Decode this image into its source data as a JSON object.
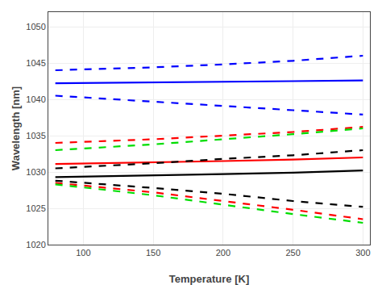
{
  "chart_data": {
    "type": "line",
    "xlabel": "Temperature [K]",
    "ylabel": "Wavelength [nm]",
    "xlim": [
      75,
      305
    ],
    "ylim": [
      1020,
      1052
    ],
    "xticks": [
      100,
      150,
      200,
      250,
      300
    ],
    "yticks": [
      1020,
      1025,
      1030,
      1035,
      1040,
      1045,
      1050
    ],
    "grid": true,
    "x": [
      80,
      150,
      200,
      250,
      300
    ],
    "series": [
      {
        "color": "#0000FF",
        "line_style": "dashed",
        "values": [
          1044.0,
          1044.4,
          1044.8,
          1045.3,
          1046.0
        ]
      },
      {
        "color": "#0000FF",
        "line_style": "solid",
        "values": [
          1042.2,
          1042.3,
          1042.4,
          1042.5,
          1042.6
        ]
      },
      {
        "color": "#0000FF",
        "line_style": "dashed",
        "values": [
          1040.5,
          1039.7,
          1039.1,
          1038.5,
          1037.9
        ]
      },
      {
        "color": "#FF0000",
        "line_style": "dashed",
        "values": [
          1034.0,
          1034.5,
          1035.0,
          1035.5,
          1036.2
        ]
      },
      {
        "color": "#00DD00",
        "line_style": "dashed",
        "values": [
          1033.0,
          1033.8,
          1034.5,
          1035.2,
          1036.0
        ]
      },
      {
        "color": "#FF0000",
        "line_style": "solid",
        "values": [
          1031.1,
          1031.3,
          1031.5,
          1031.7,
          1032.0
        ]
      },
      {
        "color": "#000000",
        "line_style": "dashed",
        "values": [
          1030.5,
          1031.2,
          1031.8,
          1032.3,
          1033.0
        ]
      },
      {
        "color": "#000000",
        "line_style": "solid",
        "values": [
          1029.3,
          1029.5,
          1029.7,
          1029.9,
          1030.2
        ]
      },
      {
        "color": "#000000",
        "line_style": "dashed",
        "values": [
          1028.8,
          1027.8,
          1027.0,
          1026.0,
          1025.2
        ]
      },
      {
        "color": "#FF0000",
        "line_style": "dashed",
        "values": [
          1028.5,
          1027.2,
          1026.0,
          1024.8,
          1023.5
        ]
      },
      {
        "color": "#00DD00",
        "line_style": "dashed",
        "values": [
          1028.3,
          1026.8,
          1025.5,
          1024.2,
          1023.0
        ]
      }
    ]
  }
}
